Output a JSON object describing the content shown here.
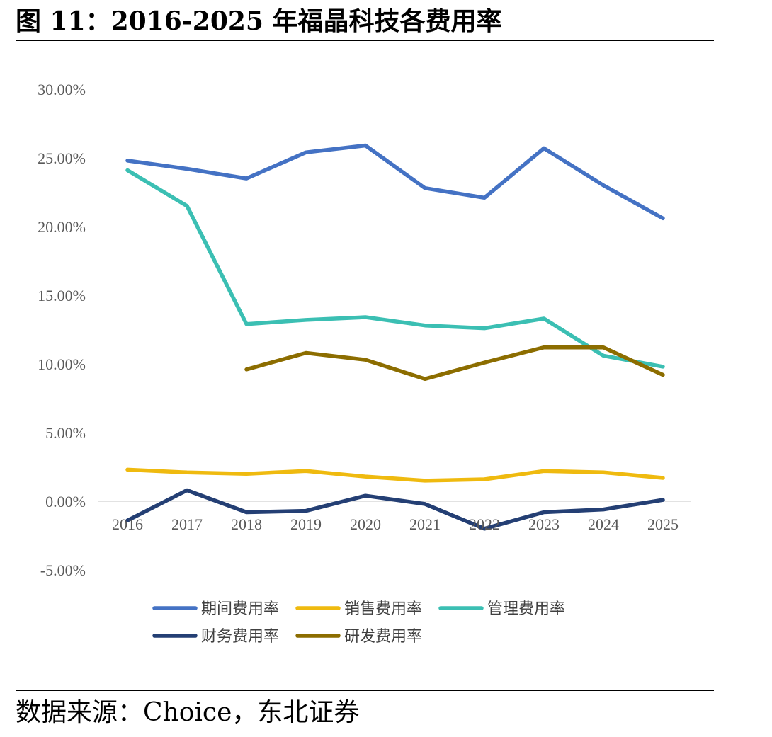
{
  "title": "图 11：2016-2025 年福晶科技各费用率",
  "source": "数据来源：Choice，东北证券",
  "chart_data": {
    "type": "line",
    "title": "",
    "xlabel": "",
    "ylabel": "",
    "x": [
      "2016",
      "2017",
      "2018",
      "2019",
      "2020",
      "2021",
      "2022",
      "2023",
      "2024",
      "2025"
    ],
    "ylim": [
      -5,
      30
    ],
    "yticks": [
      "-5.00%",
      "0.00%",
      "5.00%",
      "10.00%",
      "15.00%",
      "20.00%",
      "25.00%",
      "30.00%"
    ],
    "ytick_values": [
      -5,
      0,
      5,
      10,
      15,
      20,
      25,
      30
    ],
    "grid": false,
    "legend_position": "bottom",
    "series": [
      {
        "name": "期间费用率",
        "color": "#4472C4",
        "values": [
          24.8,
          24.2,
          23.5,
          25.4,
          25.9,
          22.8,
          22.1,
          25.7,
          23.0,
          20.6
        ]
      },
      {
        "name": "销售费用率",
        "color": "#EFBA0F",
        "values": [
          2.3,
          2.1,
          2.0,
          2.2,
          1.8,
          1.5,
          1.6,
          2.2,
          2.1,
          1.7
        ]
      },
      {
        "name": "管理费用率",
        "color": "#3BBFB3",
        "values": [
          24.1,
          21.5,
          12.9,
          13.2,
          13.4,
          12.8,
          12.6,
          13.3,
          10.6,
          9.8
        ]
      },
      {
        "name": "财务费用率",
        "color": "#243F74",
        "values": [
          -1.4,
          0.8,
          -0.8,
          -0.7,
          0.4,
          -0.2,
          -2.0,
          -0.8,
          -0.6,
          0.1
        ]
      },
      {
        "name": "研发费用率",
        "color": "#8C6D00",
        "values": [
          null,
          null,
          9.6,
          10.8,
          10.3,
          8.9,
          10.1,
          11.2,
          11.2,
          9.2
        ]
      }
    ]
  }
}
